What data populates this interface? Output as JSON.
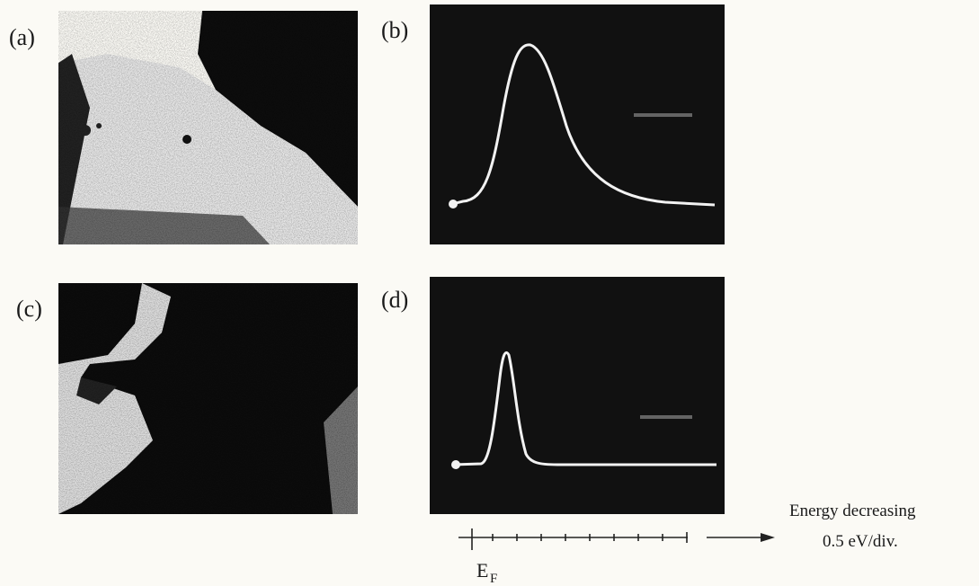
{
  "panels": [
    {
      "label": "(a)"
    },
    {
      "label": "(b)"
    },
    {
      "label": "(c)"
    },
    {
      "label": "(d)"
    }
  ],
  "energy_axis": {
    "direction": "Energy decreasing",
    "scale": "0.5 eV/div.",
    "fermi": {
      "symbol": "E",
      "subscript": "F"
    }
  }
}
